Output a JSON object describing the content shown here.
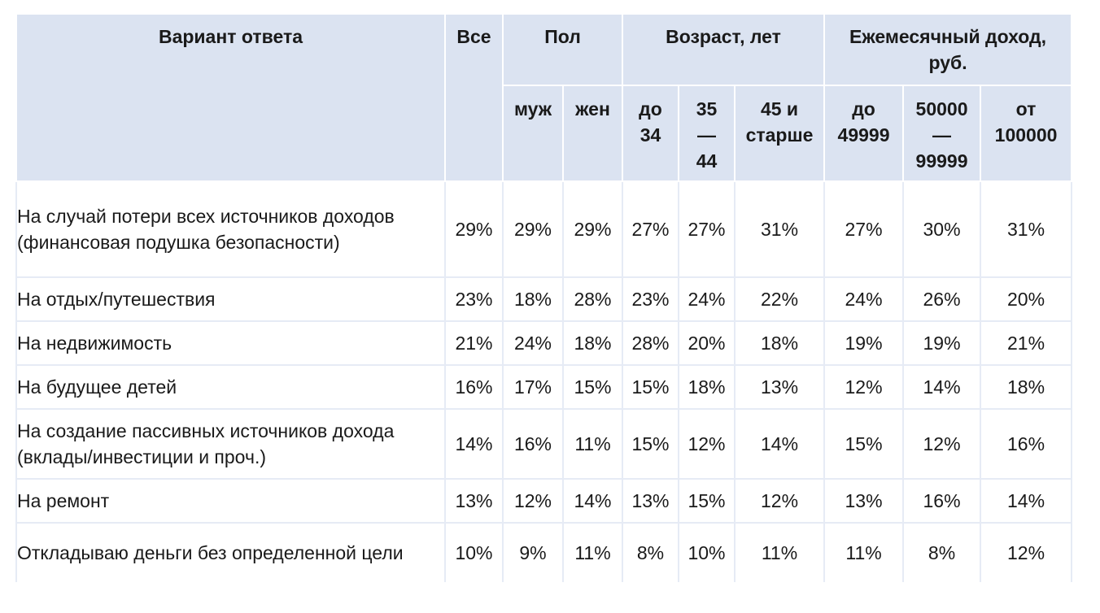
{
  "header": {
    "answer": "Вариант ответа",
    "all": "Все",
    "gender": "Пол",
    "age": "Возраст, лет",
    "income": "Ежемесячный доход, руб.",
    "sub": {
      "male": "муж",
      "female": "жен",
      "age_to_34": "до 34",
      "age_35_44": "35 — 44",
      "age_45_plus": "45 и старше",
      "inc_to_49999": "до 49999",
      "inc_50000_99999": "50000 — 99999",
      "inc_from_100000": "от 100000"
    }
  },
  "rows": [
    {
      "label": "На случай потери всех источников доходов (финансовая подушка безопасности)",
      "values": [
        "29%",
        "29%",
        "29%",
        "27%",
        "27%",
        "31%",
        "27%",
        "30%",
        "31%"
      ]
    },
    {
      "label": "На отдых/путешествия",
      "values": [
        "23%",
        "18%",
        "28%",
        "23%",
        "24%",
        "22%",
        "24%",
        "26%",
        "20%"
      ]
    },
    {
      "label": "На недвижимость",
      "values": [
        "21%",
        "24%",
        "18%",
        "28%",
        "20%",
        "18%",
        "19%",
        "19%",
        "21%"
      ]
    },
    {
      "label": "На будущее детей",
      "values": [
        "16%",
        "17%",
        "15%",
        "15%",
        "18%",
        "13%",
        "12%",
        "14%",
        "18%"
      ]
    },
    {
      "label": "На создание пассивных источников дохода (вклады/инвестиции и проч.)",
      "values": [
        "14%",
        "16%",
        "11%",
        "15%",
        "12%",
        "14%",
        "15%",
        "12%",
        "16%"
      ]
    },
    {
      "label": "На ремонт",
      "values": [
        "13%",
        "12%",
        "14%",
        "13%",
        "15%",
        "12%",
        "13%",
        "16%",
        "14%"
      ]
    },
    {
      "label": "Откладываю деньги без определенной цели",
      "values": [
        "10%",
        "9%",
        "11%",
        "8%",
        "10%",
        "11%",
        "11%",
        "8%",
        "12%"
      ]
    }
  ]
}
